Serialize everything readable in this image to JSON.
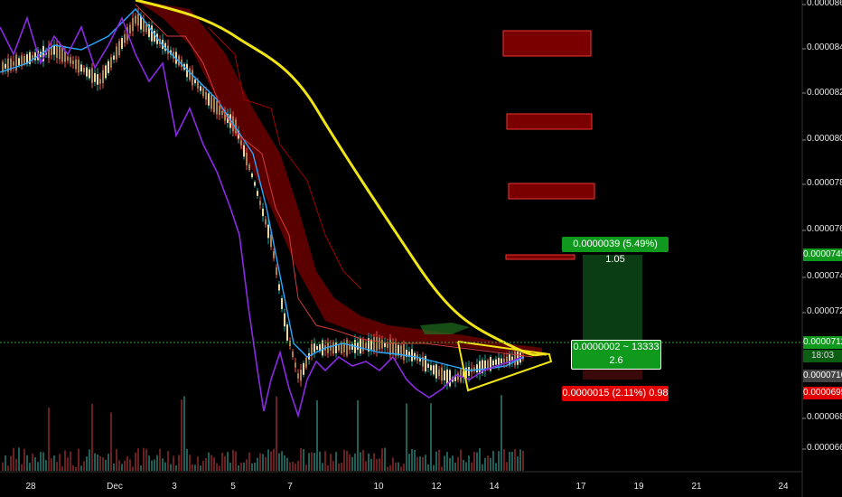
{
  "price_axis": {
    "labels": [
      "0.0000860",
      "0.0000840",
      "0.0000820",
      "0.0000800",
      "0.0000780",
      "0.0000760",
      "0.0000740",
      "0.0000725",
      "0.0000710",
      "0.0000695",
      "0.0000680",
      "0.0000668"
    ]
  },
  "time_axis": {
    "labels": [
      "28",
      "Dec",
      "3",
      "5",
      "7",
      "10",
      "12",
      "14",
      "17",
      "19",
      "21",
      "24"
    ]
  },
  "badges": {
    "target_price": "0.0000749",
    "current_price": "0.0000712",
    "countdown": "18:03",
    "entry_price": "0.0000710",
    "stop_price": "0.0000695"
  },
  "position": {
    "profit_text": "0.0000039 (5.49%) 1.05",
    "range_text": "0.0000002 ~ 13333",
    "ratio_text": "2.6",
    "loss_text": "0.0000015 (2.11%) 0.98"
  },
  "colors": {
    "background": "#000000",
    "moving_average": "#f0e415",
    "cloud": "#8b0000",
    "signal_line": "#8a2be2",
    "profit_zone": "#0b3d14",
    "profit_badge": "#0f9a1e",
    "loss_badge": "#e00000"
  }
}
